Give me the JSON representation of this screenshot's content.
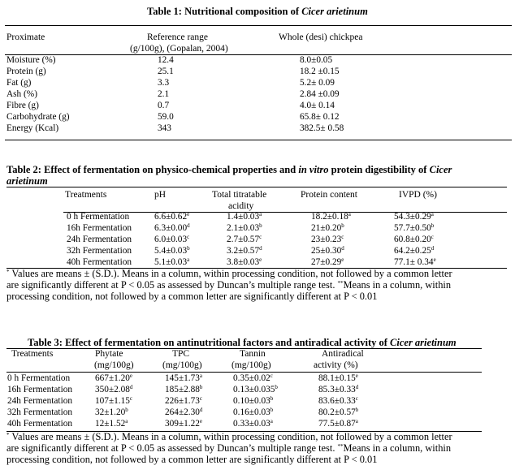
{
  "table1": {
    "caption_prefix": "Table 1: Nutritional composition of ",
    "caption_species": "Cicer arietinum",
    "headers": {
      "proximate": "Proximate",
      "reference_line1": "Reference range",
      "reference_line2": "(g/100g), (Gopalan, 2004)",
      "whole": "Whole (desi) chickpea"
    },
    "rows": [
      {
        "label": "Moisture (%)",
        "ref": "12.4",
        "val": "8.0±0.05"
      },
      {
        "label": "Protein (g)",
        "ref": "25.1",
        "val": "18.2 ±0.15"
      },
      {
        "label": "Fat (g)",
        "ref": "3.3",
        "val": "5.2± 0.09"
      },
      {
        "label": "Ash (%)",
        "ref": "2.1",
        "val": "2.84 ±0.09"
      },
      {
        "label": "Fibre (g)",
        "ref": "0.7",
        "val": "4.0± 0.14"
      },
      {
        "label": "Carbohydrate (g)",
        "ref": "59.0",
        "val": "65.8± 0.12"
      },
      {
        "label": "Energy (Kcal)",
        "ref": "343",
        "val": "382.5± 0.58"
      }
    ]
  },
  "table2": {
    "caption_part1": "Table 2: Effect of fermentation on physico-chemical properties and ",
    "caption_italic1": "in vitro",
    "caption_part2": " protein digestibility of ",
    "caption_italic2": "Cicer",
    "caption_italic3": "arietinum",
    "headers": {
      "treatments": "Treatments",
      "ph": "pH",
      "tta_line1": "Total titratable",
      "tta_line2": "acidity",
      "protein": "Protein content",
      "ivpd": "IVPD (%)"
    },
    "rows": [
      {
        "label": "0 h Fermentation",
        "ph": "6.6±0.62",
        "ph_s": "e",
        "tta": "1.4±0.03",
        "tta_s": "a",
        "pc": "18.2±0.18",
        "pc_s": "a",
        "ivpd": "54.3±0.29",
        "ivpd_s": "a"
      },
      {
        "label": "16h Fermentation",
        "ph": "6.3±0.00",
        "ph_s": "d",
        "tta": "2.1±0.03",
        "tta_s": "b",
        "pc": "21±0.20",
        "pc_s": "b",
        "ivpd": "57.7±0.50",
        "ivpd_s": "b"
      },
      {
        "label": "24h Fermentation",
        "ph": "6.0±0.03",
        "ph_s": "c",
        "tta": "2.7±0.57",
        "tta_s": "c",
        "pc": "23±0.23",
        "pc_s": "c",
        "ivpd": "60.8±0.20",
        "ivpd_s": "c"
      },
      {
        "label": "32h Fermentation",
        "ph": "5.4±0.03",
        "ph_s": "b",
        "tta": "3.2±0.57",
        "tta_s": "d",
        "pc": "25±0.30",
        "pc_s": "d",
        "ivpd": "64.2±0.25",
        "ivpd_s": "d"
      },
      {
        "label": "40h Fermentation",
        "ph": "5.1±0.03",
        "ph_s": "a",
        "tta": "3.8±0.03",
        "tta_s": "e",
        "pc": "27±0.29",
        "pc_s": "e",
        "ivpd": "77.1± 0.34",
        "ivpd_s": "e"
      }
    ],
    "footnote_mark": "*",
    "footnote_line1": "Values are means ± (S.D.). Means in a column, within processing condition, not followed by a common letter",
    "footnote_line2_a": "are significantly different at P < 0.05 as assessed by Duncan’s multiple range test. ",
    "footnote_mark2": "**",
    "footnote_line2_b": "Means in a column, within",
    "footnote_line3": "processing condition, not followed by a common letter are significantly different at P < 0.01"
  },
  "table3": {
    "caption_prefix": "Table 3: Effect of fermentation on antinutritional factors and antiradical activity of ",
    "caption_species": "Cicer arietinum",
    "headers": {
      "treatments": "Treatments",
      "phytate_line1": "Phytate",
      "phytate_line2": "(mg/100g)",
      "tpc_line1": "TPC",
      "tpc_line2": "(mg/100g)",
      "tannin_line1": "Tannin",
      "tannin_line2": "(mg/100g)",
      "anti_line1": "Antiradical",
      "anti_line2": "activity (%)"
    },
    "rows": [
      {
        "label": "0 h Fermentation",
        "phy": "667±1.20",
        "phy_s": "e",
        "tpc": "145±1.73",
        "tpc_s": "a",
        "tan": "0.35±0.02",
        "tan_s": "c",
        "anti": "88.1±0.15",
        "anti_s": "e"
      },
      {
        "label": "16h Fermentation",
        "phy": "350±2.08",
        "phy_s": "d",
        "tpc": "185±2.88",
        "tpc_s": "b",
        "tan": "0.13±0.035",
        "tan_s": "b",
        "anti": "85.3±0.33",
        "anti_s": "d"
      },
      {
        "label": "24h Fermentation",
        "phy": "107±1.15",
        "phy_s": "c",
        "tpc": "226±1.73",
        "tpc_s": "c",
        "tan": "0.10±0.03",
        "tan_s": "b",
        "anti": "83.6±0.33",
        "anti_s": "c"
      },
      {
        "label": "32h Fermentation",
        "phy": "32±1.20",
        "phy_s": "b",
        "tpc": "264±2.30",
        "tpc_s": "d",
        "tan": "0.16±0.03",
        "tan_s": "b",
        "anti": "80.2±0.57",
        "anti_s": "b"
      },
      {
        "label": "40h Fermentation",
        "phy": "12±1.52",
        "phy_s": "a",
        "tpc": "309±1.22",
        "tpc_s": "e",
        "tan": "0.33±0.03",
        "tan_s": "a",
        "anti": "77.5±0.87",
        "anti_s": "a"
      }
    ],
    "footnote_mark": "*",
    "footnote_line1": "Values are means ± (S.D.). Means in a column, within processing condition, not followed by a common letter",
    "footnote_line2_a": "are significantly different at P < 0.05 as assessed by Duncan’s multiple range test. ",
    "footnote_mark2": "**",
    "footnote_line2_b": "Means in a column, within",
    "footnote_line3": "processing condition, not followed by a common letter are significantly different at P < 0.01"
  }
}
